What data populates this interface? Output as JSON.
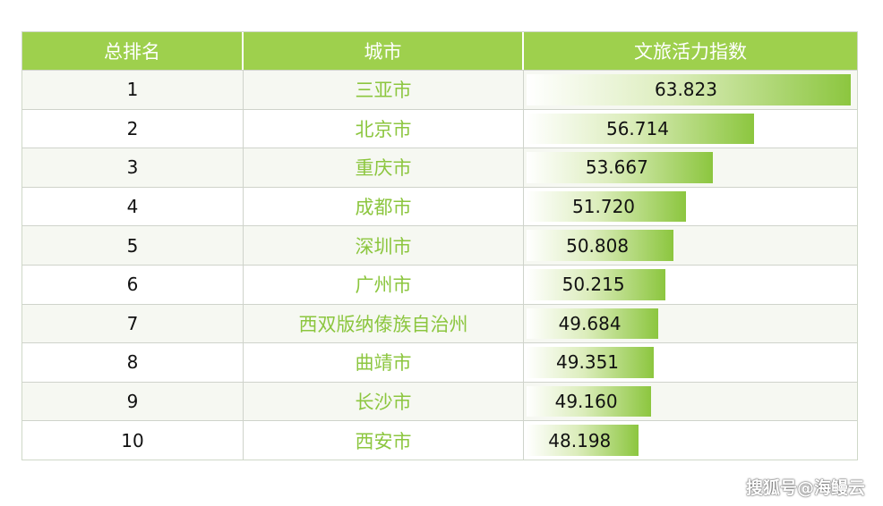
{
  "headers": {
    "rank": "总排名",
    "city": "城市",
    "index": "文旅活力指数"
  },
  "chart_data": {
    "type": "table",
    "max_value": 63.823,
    "rows": [
      {
        "rank": "1",
        "city": "三亚市",
        "value": "63.823"
      },
      {
        "rank": "2",
        "city": "北京市",
        "value": "56.714"
      },
      {
        "rank": "3",
        "city": "重庆市",
        "value": "53.667"
      },
      {
        "rank": "4",
        "city": "成都市",
        "value": "51.720"
      },
      {
        "rank": "5",
        "city": "深圳市",
        "value": "50.808"
      },
      {
        "rank": "6",
        "city": "广州市",
        "value": "50.215"
      },
      {
        "rank": "7",
        "city": "西双版纳傣族自治州",
        "value": "49.684"
      },
      {
        "rank": "8",
        "city": "曲靖市",
        "value": "49.351"
      },
      {
        "rank": "9",
        "city": "长沙市",
        "value": "49.160"
      },
      {
        "rank": "10",
        "city": "西安市",
        "value": "48.198"
      }
    ]
  },
  "colors": {
    "header": "#9ed04d",
    "city_text": "#8cc63f",
    "bar_end": "#8cc63f"
  },
  "watermark": "搜狐号@海鳗云"
}
